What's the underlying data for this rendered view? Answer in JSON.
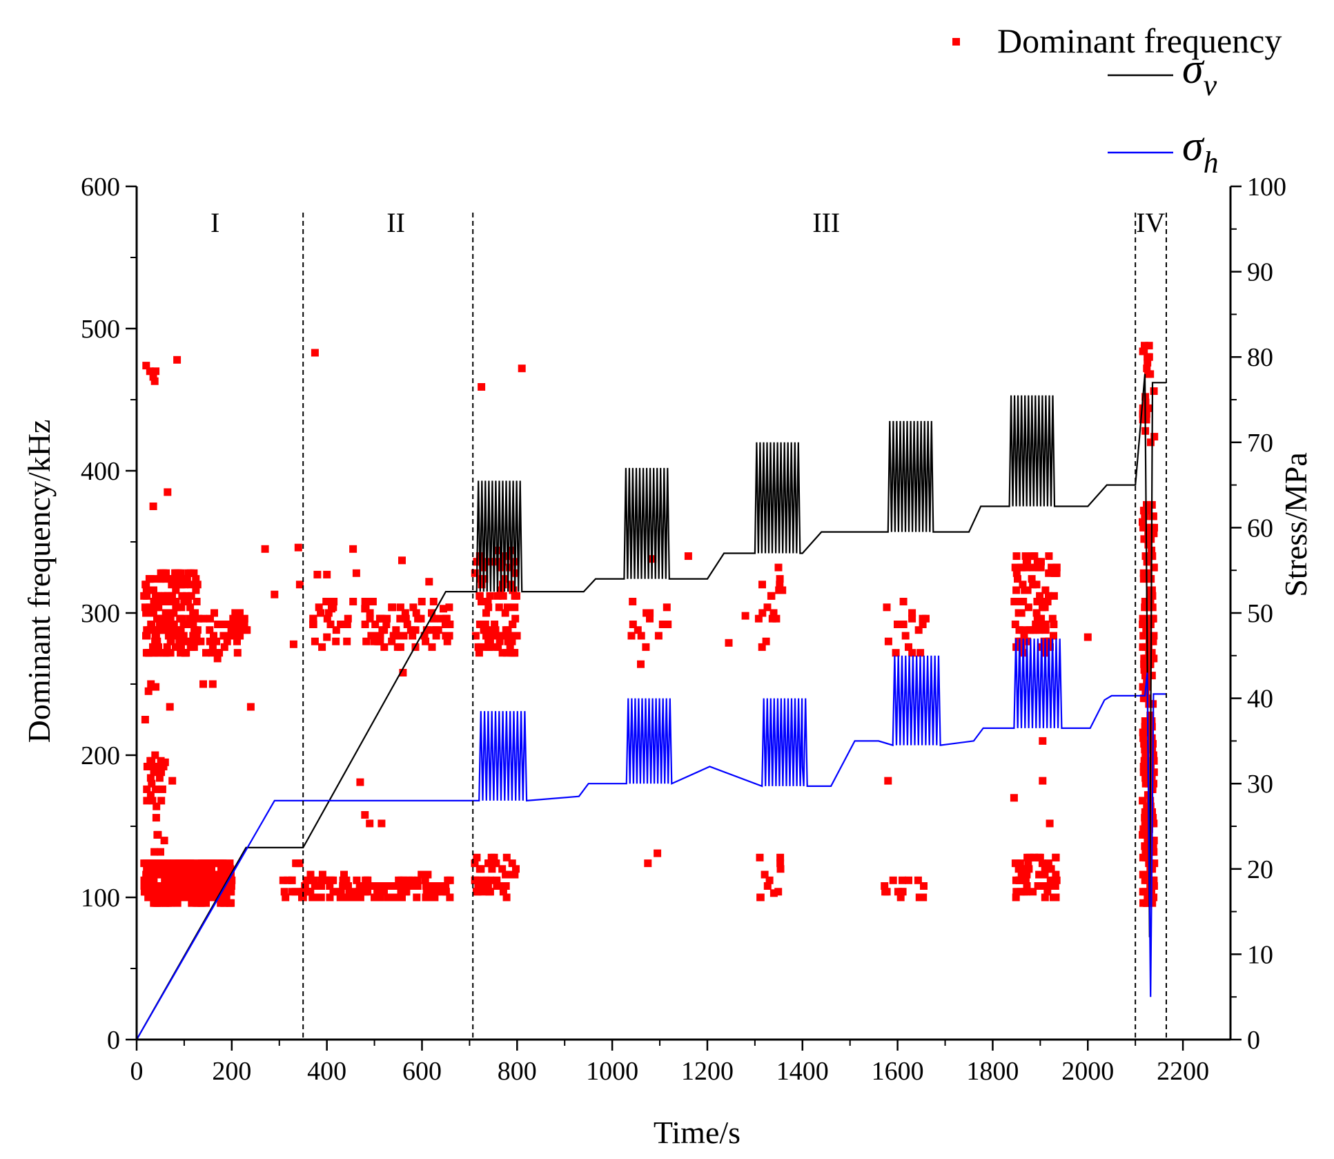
{
  "chart_data": {
    "type": "scatter+line",
    "xlabel": "Time/s",
    "ylabel_left": "Dominant frequency/kHz",
    "ylabel_right": "Stress/MPa",
    "xlim": [
      0,
      2300
    ],
    "ylim_left": [
      0,
      600
    ],
    "ylim_right": [
      0,
      100
    ],
    "x_ticks": [
      "0",
      "200",
      "400",
      "600",
      "800",
      "1000",
      "1200",
      "1400",
      "1600",
      "1800",
      "2000",
      "2200"
    ],
    "y_left_ticks": [
      "0",
      "100",
      "200",
      "300",
      "400",
      "500",
      "600"
    ],
    "y_right_ticks": [
      "0",
      "10",
      "20",
      "30",
      "40",
      "50",
      "60",
      "70",
      "80",
      "90",
      "100"
    ],
    "stage_boundaries": [
      350,
      707,
      2100,
      2165
    ],
    "stages": [
      {
        "label": "I",
        "x": 165
      },
      {
        "label": "II",
        "x": 545
      },
      {
        "label": "III",
        "x": 1450
      },
      {
        "label": "IV",
        "x": 2132
      }
    ],
    "legend": {
      "scatter_label": "Dominant frequency",
      "sigma_symbol": "σ",
      "sigma_v_sub": "v",
      "sigma_h_sub": "h"
    },
    "colors": {
      "scatter": "#ff0000",
      "sigma_v": "#000000",
      "sigma_h": "#0000ff"
    },
    "sigma_v": [
      [
        0,
        0
      ],
      [
        230,
        22.5
      ],
      [
        350,
        22.5
      ],
      [
        650,
        52.5
      ],
      [
        940,
        52.5
      ],
      [
        965,
        54
      ],
      [
        1200,
        54
      ],
      [
        1235,
        57
      ],
      [
        1400,
        57
      ],
      [
        1440,
        59.5
      ],
      [
        1750,
        59.5
      ],
      [
        1775,
        62.5
      ],
      [
        1940,
        62.5
      ],
      [
        2000,
        62.5
      ],
      [
        2040,
        65
      ],
      [
        2100,
        65
      ],
      [
        2120,
        78
      ],
      [
        2130,
        12
      ],
      [
        2136,
        77
      ],
      [
        2165,
        77
      ]
    ],
    "sigma_v_cycles": [
      {
        "t0": 715,
        "t1": 810,
        "low": 52.5,
        "high": 65.5,
        "n": 13
      },
      {
        "t0": 1025,
        "t1": 1120,
        "low": 54,
        "high": 67,
        "n": 13
      },
      {
        "t0": 1300,
        "t1": 1395,
        "low": 57,
        "high": 70,
        "n": 13
      },
      {
        "t0": 1580,
        "t1": 1675,
        "low": 59.5,
        "high": 72.5,
        "n": 13
      },
      {
        "t0": 1835,
        "t1": 1930,
        "low": 62.5,
        "high": 75.5,
        "n": 13
      }
    ],
    "sigma_h": [
      [
        0,
        0
      ],
      [
        290,
        28
      ],
      [
        930,
        28.5
      ],
      [
        950,
        30
      ],
      [
        1205,
        32
      ],
      [
        1400,
        32
      ],
      [
        1410,
        29.7
      ],
      [
        1460,
        29.7
      ],
      [
        1510,
        35
      ],
      [
        1560,
        35
      ],
      [
        1760,
        35
      ],
      [
        1780,
        36.5
      ],
      [
        1950,
        36.5
      ],
      [
        2005,
        36.5
      ],
      [
        2035,
        39.8
      ],
      [
        2050,
        40.3
      ],
      [
        2120,
        40.3
      ],
      [
        2125,
        43
      ],
      [
        2132,
        5
      ],
      [
        2138,
        40.5
      ],
      [
        2165,
        40.5
      ]
    ],
    "sigma_h_cycles": [
      {
        "t0": 720,
        "t1": 820,
        "low": 28,
        "high": 38.5,
        "n": 13
      },
      {
        "t0": 1030,
        "t1": 1125,
        "low": 30,
        "high": 40,
        "n": 13
      },
      {
        "t0": 1315,
        "t1": 1410,
        "low": 29.7,
        "high": 40,
        "n": 13
      },
      {
        "t0": 1590,
        "t1": 1690,
        "low": 34.5,
        "high": 45,
        "n": 13
      },
      {
        "t0": 1845,
        "t1": 1945,
        "low": 36.5,
        "high": 47,
        "n": 13
      }
    ],
    "dominant_frequency_regions": [
      {
        "t": [
          15,
          200
        ],
        "f": [
          96,
          125
        ],
        "n": 380
      },
      {
        "t": [
          15,
          130
        ],
        "f": [
          270,
          330
        ],
        "n": 180
      },
      {
        "t": [
          130,
          240
        ],
        "f": [
          270,
          300
        ],
        "n": 45
      },
      {
        "t": [
          20,
          60
        ],
        "f": [
          130,
          200
        ],
        "n": 28
      },
      {
        "t": [
          300,
          350
        ],
        "f": [
          98,
          130
        ],
        "n": 14
      },
      {
        "t": [
          350,
          660
        ],
        "f": [
          98,
          115
        ],
        "n": 120
      },
      {
        "t": [
          370,
          660
        ],
        "f": [
          275,
          310
        ],
        "n": 90
      },
      {
        "t": [
          710,
          800
        ],
        "f": [
          98,
          130
        ],
        "n": 45
      },
      {
        "t": [
          710,
          800
        ],
        "f": [
          270,
          345
        ],
        "n": 90
      },
      {
        "t": [
          1040,
          1120
        ],
        "f": [
          275,
          320
        ],
        "n": 14
      },
      {
        "t": [
          1300,
          1360
        ],
        "f": [
          275,
          335
        ],
        "n": 16
      },
      {
        "t": [
          1300,
          1360
        ],
        "f": [
          98,
          130
        ],
        "n": 10
      },
      {
        "t": [
          1570,
          1660
        ],
        "f": [
          98,
          115
        ],
        "n": 14
      },
      {
        "t": [
          1570,
          1660
        ],
        "f": [
          270,
          310
        ],
        "n": 16
      },
      {
        "t": [
          1845,
          1935
        ],
        "f": [
          98,
          130
        ],
        "n": 55
      },
      {
        "t": [
          1845,
          1935
        ],
        "f": [
          270,
          340
        ],
        "n": 90
      },
      {
        "t": [
          2115,
          2140
        ],
        "f": [
          95,
          380
        ],
        "n": 230
      },
      {
        "t": [
          2115,
          2140
        ],
        "f": [
          420,
          490
        ],
        "n": 25
      }
    ],
    "dominant_frequency_points": [
      [
        20,
        474
      ],
      [
        28,
        470
      ],
      [
        35,
        466
      ],
      [
        40,
        470
      ],
      [
        38,
        463
      ],
      [
        85,
        478
      ],
      [
        375,
        483
      ],
      [
        725,
        459
      ],
      [
        810,
        472
      ],
      [
        65,
        385
      ],
      [
        35,
        375
      ],
      [
        270,
        345
      ],
      [
        290,
        313
      ],
      [
        340,
        346
      ],
      [
        343,
        320
      ],
      [
        380,
        327
      ],
      [
        400,
        327
      ],
      [
        410,
        303
      ],
      [
        455,
        345
      ],
      [
        462,
        328
      ],
      [
        558,
        337
      ],
      [
        480,
        303
      ],
      [
        615,
        322
      ],
      [
        645,
        303
      ],
      [
        170,
        268
      ],
      [
        240,
        234
      ],
      [
        400,
        283
      ],
      [
        560,
        258
      ],
      [
        330,
        278
      ],
      [
        1280,
        298
      ],
      [
        1160,
        340
      ],
      [
        1085,
        338
      ],
      [
        1060,
        264
      ],
      [
        1245,
        279
      ],
      [
        2000,
        283
      ],
      [
        1580,
        182
      ],
      [
        1845,
        170
      ],
      [
        1905,
        182
      ],
      [
        1920,
        152
      ],
      [
        1905,
        210
      ],
      [
        470,
        181
      ],
      [
        480,
        158
      ],
      [
        490,
        152
      ],
      [
        515,
        152
      ],
      [
        1075,
        124
      ],
      [
        1095,
        131
      ],
      [
        1340,
        103
      ],
      [
        1650,
        100
      ],
      [
        1610,
        112
      ],
      [
        18,
        225
      ],
      [
        25,
        245
      ],
      [
        30,
        250
      ],
      [
        40,
        248
      ],
      [
        70,
        234
      ],
      [
        140,
        250
      ],
      [
        160,
        250
      ],
      [
        75,
        182
      ],
      [
        60,
        195
      ]
    ]
  }
}
